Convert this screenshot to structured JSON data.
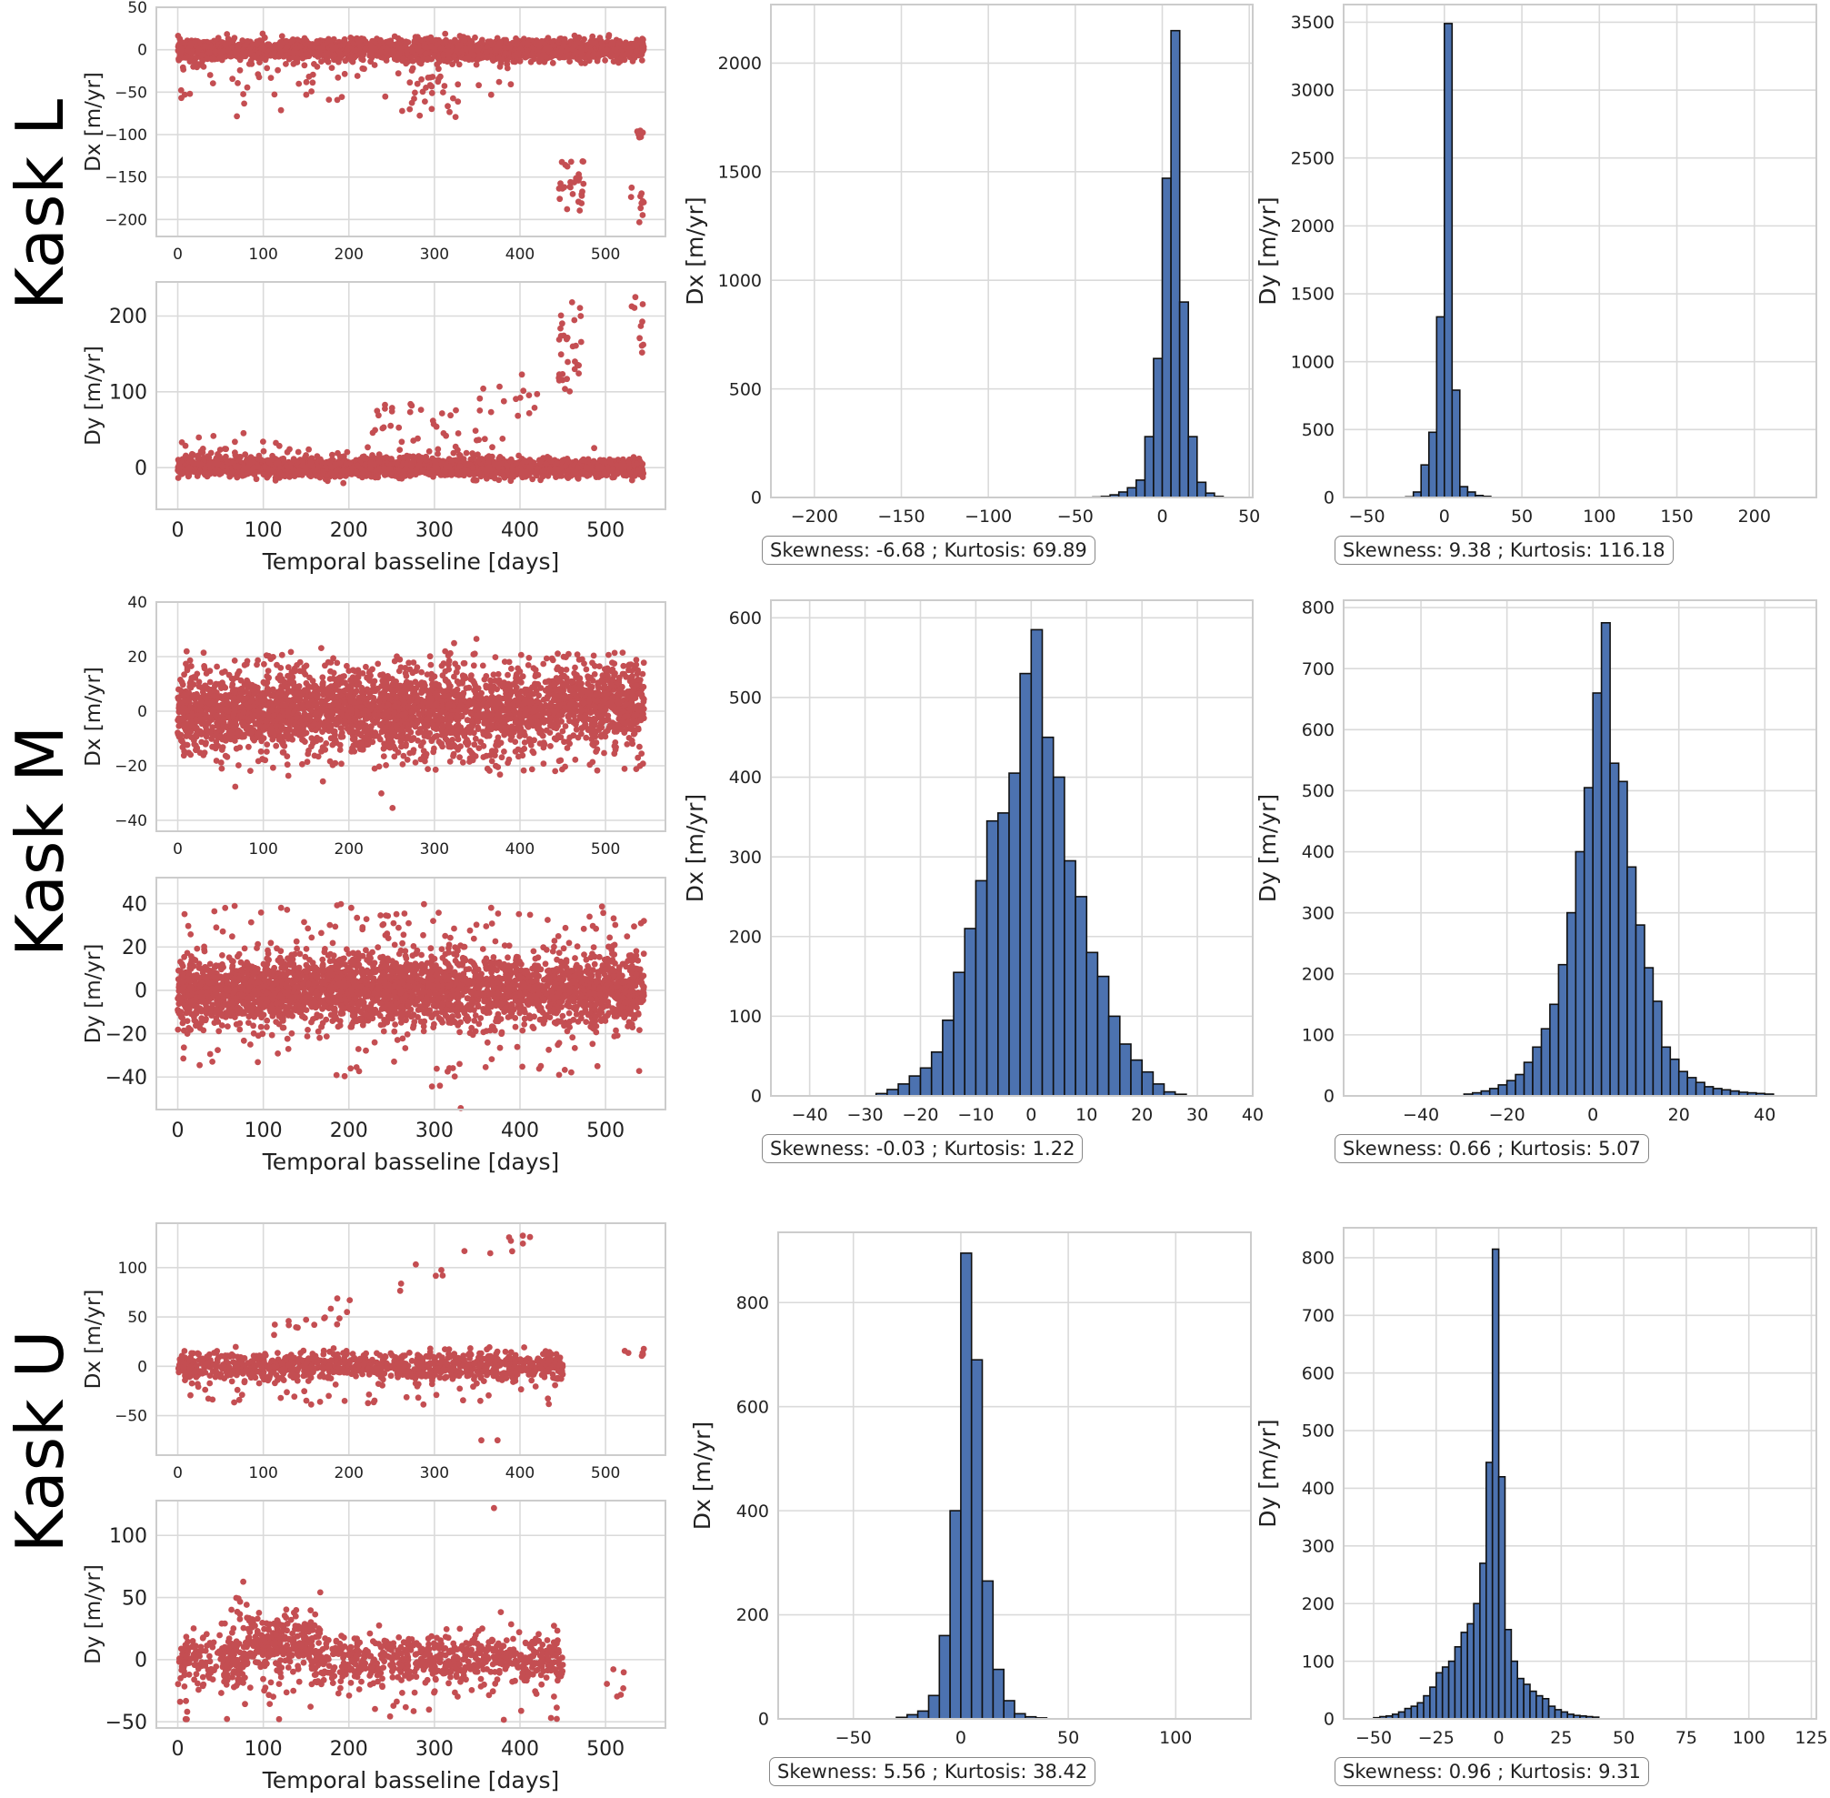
{
  "rows": [
    {
      "label": "Kask L",
      "dx_scatter": {
        "yticks": [
          50,
          0,
          -50,
          -100,
          -150,
          -200
        ],
        "ylim": [
          -220,
          50
        ]
      },
      "dy_scatter": {
        "yticks": [
          0,
          100,
          200
        ],
        "ylim": [
          -55,
          245
        ]
      },
      "dx_hist": {
        "xticks": [
          -200,
          -150,
          -100,
          -50,
          0,
          50
        ],
        "xlim": [
          -225,
          52
        ],
        "yticks": [
          0,
          500,
          1000,
          1500,
          2000
        ],
        "ylim": [
          0,
          2270
        ],
        "bins": [
          [
            -40,
            -35,
            2
          ],
          [
            -35,
            -30,
            5
          ],
          [
            -30,
            -25,
            12
          ],
          [
            -25,
            -20,
            25
          ],
          [
            -20,
            -15,
            45
          ],
          [
            -15,
            -10,
            80
          ],
          [
            -10,
            -5,
            280
          ],
          [
            -5,
            0,
            640
          ],
          [
            0,
            5,
            1470
          ],
          [
            5,
            10,
            2150
          ],
          [
            10,
            15,
            900
          ],
          [
            15,
            20,
            280
          ],
          [
            20,
            25,
            70
          ],
          [
            25,
            30,
            20
          ],
          [
            30,
            35,
            5
          ]
        ],
        "stats": "Skewness: -6.68 ; Kurtosis: 69.89"
      },
      "dy_hist": {
        "xticks": [
          -50,
          0,
          50,
          100,
          150,
          200
        ],
        "xlim": [
          -65,
          240
        ],
        "yticks": [
          0,
          500,
          1000,
          1500,
          2000,
          2500,
          3000,
          3500
        ],
        "ylim": [
          0,
          3630
        ],
        "bins": [
          [
            -25,
            -20,
            5
          ],
          [
            -20,
            -15,
            40
          ],
          [
            -15,
            -10,
            240
          ],
          [
            -10,
            -5,
            480
          ],
          [
            -5,
            0,
            1330
          ],
          [
            0,
            5,
            3490
          ],
          [
            5,
            10,
            790
          ],
          [
            10,
            15,
            80
          ],
          [
            15,
            20,
            40
          ],
          [
            20,
            25,
            15
          ],
          [
            25,
            30,
            8
          ]
        ],
        "stats": "Skewness: 9.38 ; Kurtosis: 116.18"
      }
    },
    {
      "label": "Kask M",
      "dx_scatter": {
        "yticks": [
          40,
          20,
          0,
          -20,
          -40
        ],
        "ylim": [
          -44,
          40
        ]
      },
      "dy_scatter": {
        "yticks": [
          40,
          20,
          0,
          -20,
          -40
        ],
        "ylim": [
          -55,
          52
        ]
      },
      "dx_hist": {
        "xticks": [
          -40,
          -30,
          -20,
          -10,
          0,
          10,
          20,
          30,
          40
        ],
        "xlim": [
          -47,
          40
        ],
        "yticks": [
          0,
          100,
          200,
          300,
          400,
          500,
          600
        ],
        "ylim": [
          0,
          622
        ],
        "bins": [
          [
            -28,
            -26,
            3
          ],
          [
            -26,
            -24,
            8
          ],
          [
            -24,
            -22,
            15
          ],
          [
            -22,
            -20,
            25
          ],
          [
            -20,
            -18,
            35
          ],
          [
            -18,
            -16,
            55
          ],
          [
            -16,
            -14,
            95
          ],
          [
            -14,
            -12,
            155
          ],
          [
            -12,
            -10,
            210
          ],
          [
            -10,
            -8,
            270
          ],
          [
            -8,
            -6,
            345
          ],
          [
            -6,
            -4,
            355
          ],
          [
            -4,
            -2,
            405
          ],
          [
            -2,
            0,
            530
          ],
          [
            0,
            2,
            585
          ],
          [
            2,
            4,
            450
          ],
          [
            4,
            6,
            400
          ],
          [
            6,
            8,
            295
          ],
          [
            8,
            10,
            250
          ],
          [
            10,
            12,
            180
          ],
          [
            12,
            14,
            150
          ],
          [
            14,
            16,
            100
          ],
          [
            16,
            18,
            65
          ],
          [
            18,
            20,
            45
          ],
          [
            20,
            22,
            30
          ],
          [
            22,
            24,
            15
          ],
          [
            24,
            26,
            5
          ],
          [
            26,
            28,
            2
          ]
        ],
        "stats": "Skewness: -0.03 ; Kurtosis: 1.22"
      },
      "dy_hist": {
        "xticks": [
          -40,
          -20,
          0,
          20,
          40
        ],
        "xlim": [
          -58,
          52
        ],
        "yticks": [
          0,
          100,
          200,
          300,
          400,
          500,
          600,
          700,
          800
        ],
        "ylim": [
          0,
          812
        ],
        "bins": [
          [
            -30,
            -28,
            3
          ],
          [
            -28,
            -26,
            5
          ],
          [
            -26,
            -24,
            8
          ],
          [
            -24,
            -22,
            12
          ],
          [
            -22,
            -20,
            18
          ],
          [
            -20,
            -18,
            25
          ],
          [
            -18,
            -16,
            35
          ],
          [
            -16,
            -14,
            55
          ],
          [
            -14,
            -12,
            80
          ],
          [
            -12,
            -10,
            110
          ],
          [
            -10,
            -8,
            150
          ],
          [
            -8,
            -6,
            215
          ],
          [
            -6,
            -4,
            300
          ],
          [
            -4,
            -2,
            400
          ],
          [
            -2,
            0,
            505
          ],
          [
            0,
            2,
            660
          ],
          [
            2,
            4,
            775
          ],
          [
            4,
            6,
            545
          ],
          [
            6,
            8,
            515
          ],
          [
            8,
            10,
            375
          ],
          [
            10,
            12,
            280
          ],
          [
            12,
            14,
            210
          ],
          [
            14,
            16,
            155
          ],
          [
            16,
            18,
            80
          ],
          [
            18,
            20,
            60
          ],
          [
            20,
            22,
            40
          ],
          [
            22,
            24,
            30
          ],
          [
            24,
            26,
            22
          ],
          [
            26,
            28,
            15
          ],
          [
            28,
            30,
            12
          ],
          [
            30,
            32,
            10
          ],
          [
            32,
            34,
            8
          ],
          [
            34,
            36,
            6
          ],
          [
            36,
            38,
            5
          ],
          [
            38,
            40,
            4
          ],
          [
            40,
            42,
            3
          ]
        ],
        "stats": "Skewness: 0.66 ; Kurtosis: 5.07"
      }
    },
    {
      "label": "Kask U",
      "dx_scatter": {
        "yticks": [
          100,
          50,
          0,
          -50
        ],
        "ylim": [
          -90,
          145
        ]
      },
      "dy_scatter": {
        "yticks": [
          100,
          50,
          0,
          -50
        ],
        "ylim": [
          -55,
          128
        ]
      },
      "dx_hist": {
        "xticks": [
          -50,
          0,
          50,
          100
        ],
        "xlim": [
          -85,
          135
        ],
        "yticks": [
          0,
          200,
          400,
          600,
          800
        ],
        "ylim": [
          0,
          935
        ],
        "bins": [
          [
            -30,
            -25,
            3
          ],
          [
            -25,
            -20,
            8
          ],
          [
            -20,
            -15,
            15
          ],
          [
            -15,
            -10,
            45
          ],
          [
            -10,
            -5,
            160
          ],
          [
            -5,
            0,
            400
          ],
          [
            0,
            5,
            895
          ],
          [
            5,
            10,
            690
          ],
          [
            10,
            15,
            265
          ],
          [
            15,
            20,
            95
          ],
          [
            20,
            25,
            35
          ],
          [
            25,
            30,
            10
          ],
          [
            30,
            35,
            4
          ],
          [
            35,
            40,
            2
          ]
        ],
        "stats": "Skewness: 5.56 ; Kurtosis: 38.42"
      },
      "dy_hist": {
        "xticks": [
          -50,
          -25,
          0,
          25,
          50,
          75,
          100,
          125
        ],
        "xlim": [
          -62,
          127
        ],
        "yticks": [
          0,
          100,
          200,
          300,
          400,
          500,
          600,
          700,
          800
        ],
        "ylim": [
          0,
          852
        ],
        "bins": [
          [
            -50,
            -47.5,
            2
          ],
          [
            -47.5,
            -45,
            4
          ],
          [
            -45,
            -42.5,
            5
          ],
          [
            -42.5,
            -40,
            8
          ],
          [
            -40,
            -37.5,
            12
          ],
          [
            -37.5,
            -35,
            18
          ],
          [
            -35,
            -32.5,
            22
          ],
          [
            -32.5,
            -30,
            28
          ],
          [
            -30,
            -27.5,
            40
          ],
          [
            -27.5,
            -25,
            55
          ],
          [
            -25,
            -22.5,
            80
          ],
          [
            -22.5,
            -20,
            90
          ],
          [
            -20,
            -17.5,
            100
          ],
          [
            -17.5,
            -15,
            125
          ],
          [
            -15,
            -12.5,
            150
          ],
          [
            -12.5,
            -10,
            165
          ],
          [
            -10,
            -7.5,
            200
          ],
          [
            -7.5,
            -5,
            270
          ],
          [
            -5,
            -2.5,
            445
          ],
          [
            -2.5,
            0,
            815
          ],
          [
            0,
            2.5,
            420
          ],
          [
            2.5,
            5,
            155
          ],
          [
            5,
            7.5,
            100
          ],
          [
            7.5,
            10,
            70
          ],
          [
            10,
            12.5,
            60
          ],
          [
            12.5,
            15,
            48
          ],
          [
            15,
            17.5,
            40
          ],
          [
            17.5,
            20,
            35
          ],
          [
            20,
            22.5,
            22
          ],
          [
            22.5,
            25,
            16
          ],
          [
            25,
            27.5,
            12
          ],
          [
            27.5,
            30,
            8
          ],
          [
            30,
            32.5,
            6
          ],
          [
            32.5,
            35,
            5
          ],
          [
            35,
            37.5,
            4
          ],
          [
            37.5,
            40,
            3
          ]
        ],
        "stats": "Skewness: 0.96 ; Kurtosis: 9.31"
      }
    }
  ],
  "scatter_xticks": [
    0,
    100,
    200,
    300,
    400,
    500
  ],
  "scatter_xlim": [
    -25,
    570
  ],
  "labels": {
    "dx": "Dx [m/yr]",
    "dy": "Dy [m/yr]",
    "xlabel": "Temporal basseline [days]"
  },
  "chart_data": {
    "type": "scatter",
    "description_units": "velocity in m/yr vs temporal baseline in days",
    "series_color": "#c44e52",
    "hist_color": "#4c72b0"
  },
  "colors": {
    "point": "#c44e52",
    "bar": "#4c72b0",
    "grid": "#dadada",
    "spine": "#cccccc"
  }
}
